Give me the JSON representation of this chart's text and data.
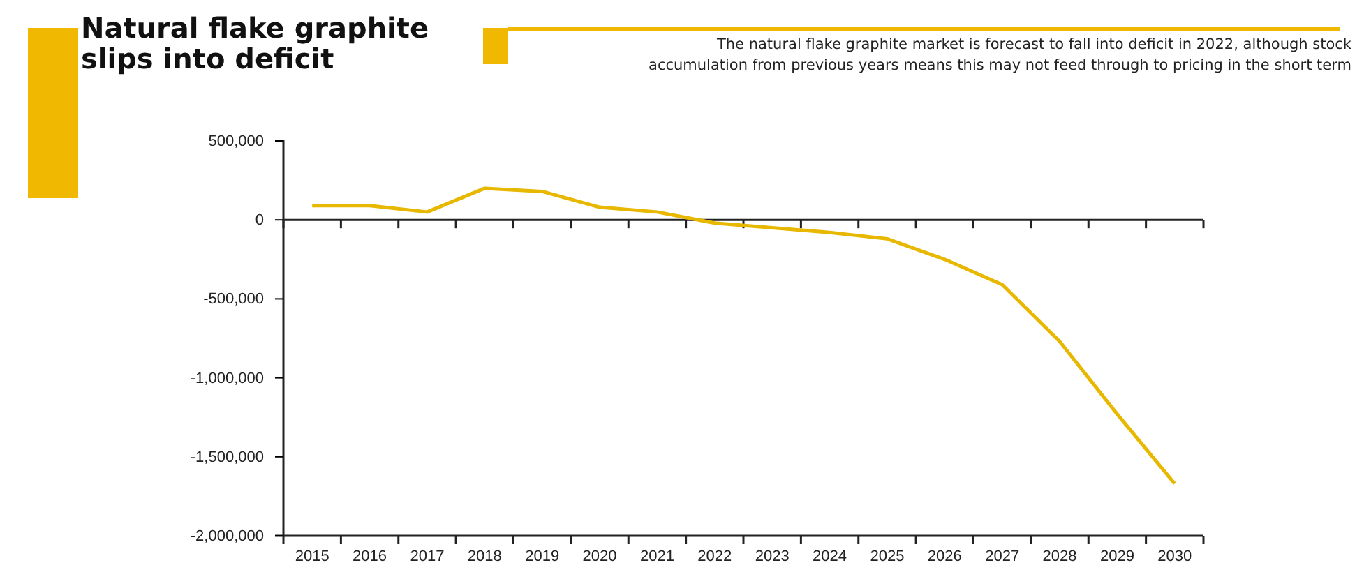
{
  "chart_data": {
    "type": "line",
    "title": "Natural flake graphite slips into deficit",
    "subtitle": "The natural flake graphite market is forecast to fall into deficit in 2022, although stock accumulation from previous years means this may not feed through to pricing in the short term",
    "categories": [
      "2015",
      "2016",
      "2017",
      "2018",
      "2019",
      "2020",
      "2021",
      "2022",
      "2023",
      "2024",
      "2025",
      "2026",
      "2027",
      "2028",
      "2029",
      "2030"
    ],
    "series": [
      {
        "color": "#e8b800",
        "values": [
          90000,
          90000,
          50000,
          200000,
          180000,
          80000,
          50000,
          -20000,
          -50000,
          -80000,
          -120000,
          -250000,
          -410000,
          -770000,
          -1230000,
          -1670000
        ]
      }
    ],
    "ylim": [
      -2000000,
      500000
    ],
    "yticks": [
      {
        "value": -2000000,
        "label": "-2,000,000"
      },
      {
        "value": -1500000,
        "label": "-1,500,000"
      },
      {
        "value": -1000000,
        "label": "-1,000,000"
      },
      {
        "value": -500000,
        "label": "-500,000"
      },
      0,
      {
        "value": 500000,
        "label": "500,000"
      }
    ],
    "marker": "none",
    "line_style": "solid"
  }
}
